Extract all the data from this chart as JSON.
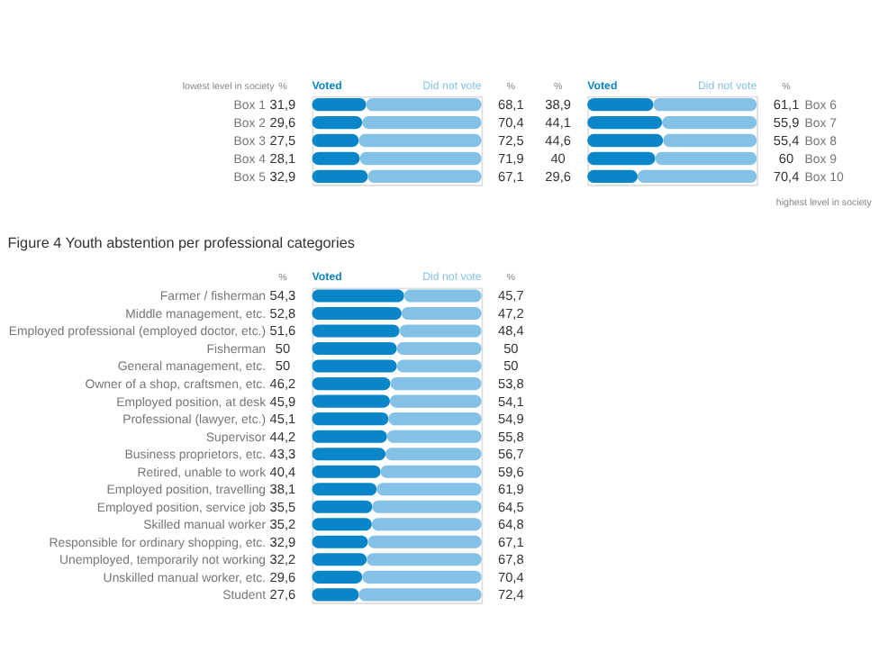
{
  "chart_data": [
    {
      "type": "bar",
      "orientation": "horizontal",
      "stacked": true,
      "categories": [
        "Box 1",
        "Box 2",
        "Box 3",
        "Box 4",
        "Box 5"
      ],
      "series": [
        {
          "name": "Voted",
          "color": "#0a85c7",
          "values": [
            31.9,
            29.6,
            27.5,
            28.1,
            32.9
          ],
          "value_labels": [
            "31,9",
            "29,6",
            "27,5",
            "28,1",
            "32,9"
          ]
        },
        {
          "name": "Did not vote",
          "color": "#84c1e6",
          "values": [
            68.1,
            70.4,
            72.5,
            71.9,
            67.1
          ],
          "value_labels": [
            "68,1",
            "70,4",
            "72,5",
            "71,9",
            "67,1"
          ]
        }
      ],
      "annotations": [
        "lowest level in society",
        "%",
        "%"
      ]
    },
    {
      "type": "bar",
      "orientation": "horizontal",
      "stacked": true,
      "categories": [
        "Box 6",
        "Box 7",
        "Box 8",
        "Box 9",
        "Box 10"
      ],
      "series": [
        {
          "name": "Voted",
          "color": "#0a85c7",
          "values": [
            38.9,
            44.1,
            44.6,
            40,
            29.6
          ],
          "value_labels": [
            "38,9",
            "44,1",
            "44,6",
            "40",
            "29,6"
          ]
        },
        {
          "name": "Did not vote",
          "color": "#84c1e6",
          "values": [
            61.1,
            55.9,
            55.4,
            60,
            70.4
          ],
          "value_labels": [
            "61,1",
            "55,9",
            "55,4",
            "60",
            "70,4"
          ]
        }
      ],
      "annotations": [
        "%",
        "%",
        "highest level in society"
      ]
    },
    {
      "type": "bar",
      "orientation": "horizontal",
      "stacked": true,
      "title": "Figure 4 Youth abstention per professional categories",
      "categories": [
        "Farmer / fisherman",
        "Middle management, etc.",
        "Employed professional (employed doctor, etc.)",
        "Fisherman",
        "General management, etc.",
        "Owner of a shop, craftsmen, etc.",
        "Employed position, at desk",
        "Professional (lawyer, etc.)",
        "Supervisor",
        "Business proprietors, etc.",
        "Retired, unable to work",
        "Employed position, travelling",
        "Employed position, service job",
        "Skilled manual worker",
        "Responsible for ordinary shopping, etc.",
        "Unemployed, temporarily not working",
        "Unskilled manual worker, etc.",
        "Student"
      ],
      "series": [
        {
          "name": "Voted",
          "color": "#0a85c7",
          "values": [
            54.3,
            52.8,
            51.6,
            50,
            50,
            46.2,
            45.9,
            45.1,
            44.2,
            43.3,
            40.4,
            38.1,
            35.5,
            35.2,
            32.9,
            32.2,
            29.6,
            27.6
          ],
          "value_labels": [
            "54,3",
            "52,8",
            "51,6",
            "50",
            "50",
            "46,2",
            "45,9",
            "45,1",
            "44,2",
            "43,3",
            "40,4",
            "38,1",
            "35,5",
            "35,2",
            "32,9",
            "32,2",
            "29,6",
            "27,6"
          ]
        },
        {
          "name": "Did not vote",
          "color": "#84c1e6",
          "values": [
            45.7,
            47.2,
            48.4,
            50,
            50,
            53.8,
            54.1,
            54.9,
            55.8,
            56.7,
            59.6,
            61.9,
            64.5,
            64.8,
            67.1,
            67.8,
            70.4,
            72.4
          ],
          "value_labels": [
            "45,7",
            "47,2",
            "48,4",
            "50",
            "50",
            "53,8",
            "54,1",
            "54,9",
            "55,8",
            "56,7",
            "59,6",
            "61,9",
            "64,5",
            "64,8",
            "67,1",
            "67,8",
            "70,4",
            "72,4"
          ]
        }
      ],
      "annotations": [
        "%",
        "%"
      ]
    }
  ]
}
